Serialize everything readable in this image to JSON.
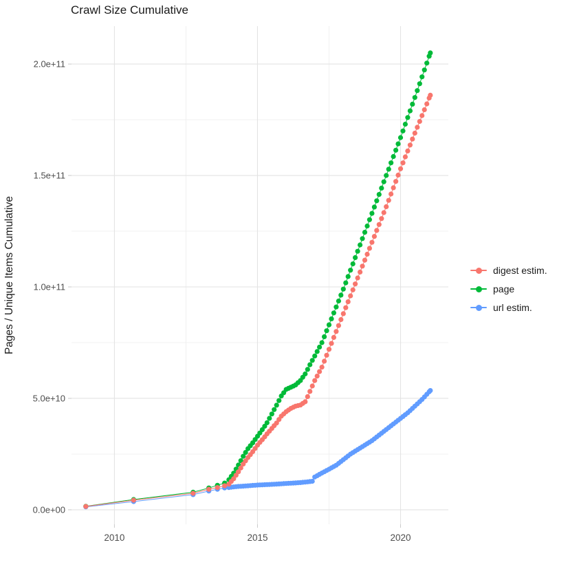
{
  "chart_data": {
    "type": "scatter",
    "title": "Crawl Size Cumulative",
    "xlabel": "",
    "ylabel": "Pages / Unique Items Cumulative",
    "legend_position": "right",
    "grid": true,
    "background": "#ffffff",
    "grid_major_color": "#e3e3e3",
    "grid_minor_color": "#f0f0f0",
    "tick_color": "#c9c9c9",
    "tick_label_color": "#4d4d4d",
    "xlim": [
      2008.5,
      2021.67
    ],
    "ylim": [
      -6500000000.0,
      217000000000.0
    ],
    "x_ticks": [
      {
        "value": 2010,
        "label": "2010"
      },
      {
        "value": 2015,
        "label": "2015"
      },
      {
        "value": 2020,
        "label": "2020"
      }
    ],
    "x_minor": [
      2012.5,
      2017.5
    ],
    "y_ticks": [
      {
        "value": 0,
        "label": "0.0e+00"
      },
      {
        "value": 50000000000.0,
        "label": "5.0e+10"
      },
      {
        "value": 100000000000.0,
        "label": "1.0e+11"
      },
      {
        "value": 150000000000.0,
        "label": "1.5e+11"
      },
      {
        "value": 200000000000.0,
        "label": "2.0e+11"
      }
    ],
    "y_minor": [
      25000000000.0,
      75000000000.0,
      125000000000.0,
      175000000000.0
    ],
    "point_dates": {
      "sparse": [
        2009.0,
        2010.67,
        2012.75,
        2013.3,
        2013.6,
        2013.85
      ],
      "monthly_start": 2014.0,
      "monthly_end": 2021.04,
      "per_year": 12
    },
    "series": [
      {
        "name": "digest estim.",
        "color": "#F8766D",
        "anchors": [
          [
            2009.0,
            1500000000.0
          ],
          [
            2010.67,
            4300000000.0
          ],
          [
            2012.75,
            7400000000.0
          ],
          [
            2013.3,
            9200000000.0
          ],
          [
            2013.6,
            10000000000.0
          ],
          [
            2013.85,
            10800000000.0
          ],
          [
            2014.0,
            11500000000.0
          ],
          [
            2014.17,
            14000000000.0
          ],
          [
            2014.33,
            17000000000.0
          ],
          [
            2014.5,
            20500000000.0
          ],
          [
            2014.67,
            23500000000.0
          ],
          [
            2014.83,
            26000000000.0
          ],
          [
            2015.0,
            29000000000.0
          ],
          [
            2015.17,
            31500000000.0
          ],
          [
            2015.33,
            34000000000.0
          ],
          [
            2015.5,
            36500000000.0
          ],
          [
            2015.67,
            39000000000.0
          ],
          [
            2015.83,
            42000000000.0
          ],
          [
            2016.0,
            44000000000.0
          ],
          [
            2016.17,
            45500000000.0
          ],
          [
            2016.33,
            46500000000.0
          ],
          [
            2016.5,
            47000000000.0
          ],
          [
            2016.67,
            48500000000.0
          ],
          [
            2016.83,
            53000000000.0
          ],
          [
            2017.0,
            58000000000.0
          ],
          [
            2017.25,
            64000000000.0
          ],
          [
            2017.5,
            72000000000.0
          ],
          [
            2018.0,
            88000000000.0
          ],
          [
            2018.5,
            104000000000.0
          ],
          [
            2019.0,
            120000000000.0
          ],
          [
            2019.5,
            136000000000.0
          ],
          [
            2020.0,
            153000000000.0
          ],
          [
            2020.5,
            169000000000.0
          ],
          [
            2021.04,
            186000000000.0
          ]
        ]
      },
      {
        "name": "page",
        "color": "#00BA38",
        "anchors": [
          [
            2009.0,
            1600000000.0
          ],
          [
            2010.67,
            4600000000.0
          ],
          [
            2012.75,
            7900000000.0
          ],
          [
            2013.3,
            9800000000.0
          ],
          [
            2013.6,
            11000000000.0
          ],
          [
            2013.85,
            12000000000.0
          ],
          [
            2014.0,
            13500000000.0
          ],
          [
            2014.17,
            16500000000.0
          ],
          [
            2014.33,
            20000000000.0
          ],
          [
            2014.5,
            24000000000.0
          ],
          [
            2014.67,
            27500000000.0
          ],
          [
            2014.83,
            30000000000.0
          ],
          [
            2015.0,
            33000000000.0
          ],
          [
            2015.17,
            36000000000.0
          ],
          [
            2015.33,
            39000000000.0
          ],
          [
            2015.5,
            43000000000.0
          ],
          [
            2015.67,
            47000000000.0
          ],
          [
            2015.83,
            51000000000.0
          ],
          [
            2016.0,
            54000000000.0
          ],
          [
            2016.17,
            55000000000.0
          ],
          [
            2016.33,
            56000000000.0
          ],
          [
            2016.5,
            58000000000.0
          ],
          [
            2016.67,
            61000000000.0
          ],
          [
            2016.83,
            65000000000.0
          ],
          [
            2017.0,
            69000000000.0
          ],
          [
            2017.25,
            75000000000.0
          ],
          [
            2017.5,
            83000000000.0
          ],
          [
            2018.0,
            99000000000.0
          ],
          [
            2018.5,
            116000000000.0
          ],
          [
            2019.0,
            133000000000.0
          ],
          [
            2019.5,
            150000000000.0
          ],
          [
            2020.0,
            167000000000.0
          ],
          [
            2020.5,
            185000000000.0
          ],
          [
            2021.04,
            205000000000.0
          ]
        ]
      },
      {
        "name": "url estim.",
        "color": "#619CFF",
        "anchors": [
          [
            2009.0,
            1300000000.0
          ],
          [
            2010.67,
            3700000000.0
          ],
          [
            2012.75,
            6800000000.0
          ],
          [
            2013.3,
            8400000000.0
          ],
          [
            2013.6,
            9200000000.0
          ],
          [
            2013.85,
            9800000000.0
          ],
          [
            2014.0,
            10000000000.0
          ],
          [
            2014.25,
            10400000000.0
          ],
          [
            2014.5,
            10600000000.0
          ],
          [
            2015.0,
            11100000000.0
          ],
          [
            2015.5,
            11400000000.0
          ],
          [
            2016.0,
            11800000000.0
          ],
          [
            2016.5,
            12200000000.0
          ],
          [
            2016.92,
            12800000000.0
          ],
          [
            2017.0,
            14700000000.0
          ],
          [
            2017.25,
            16500000000.0
          ],
          [
            2017.5,
            18200000000.0
          ],
          [
            2017.75,
            20000000000.0
          ],
          [
            2018.0,
            22500000000.0
          ],
          [
            2018.25,
            25000000000.0
          ],
          [
            2018.5,
            27000000000.0
          ],
          [
            2018.75,
            29000000000.0
          ],
          [
            2019.0,
            31000000000.0
          ],
          [
            2019.25,
            33500000000.0
          ],
          [
            2019.5,
            36000000000.0
          ],
          [
            2019.75,
            38500000000.0
          ],
          [
            2020.0,
            41000000000.0
          ],
          [
            2020.25,
            43500000000.0
          ],
          [
            2020.5,
            46500000000.0
          ],
          [
            2020.75,
            49500000000.0
          ],
          [
            2021.04,
            53500000000.0
          ]
        ]
      }
    ]
  }
}
